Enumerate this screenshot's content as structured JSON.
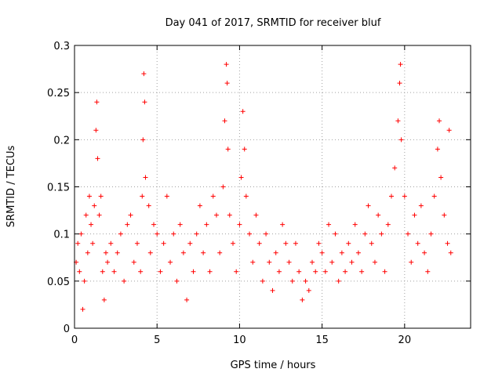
{
  "chart_data": {
    "type": "scatter",
    "title": "Day 041 of 2017, SRMTID for receiver bluf",
    "xlabel": "GPS time / hours",
    "ylabel": "SRMTID / TECUs",
    "xlim": [
      0,
      24
    ],
    "ylim": [
      0,
      0.3
    ],
    "xticks": [
      0,
      5,
      10,
      15,
      20
    ],
    "xtick_labels": [
      "0",
      "5",
      "10",
      "15",
      "20"
    ],
    "yticks": [
      0,
      0.05,
      0.1,
      0.15,
      0.2,
      0.25,
      0.3
    ],
    "ytick_labels": [
      "0",
      "0.05",
      "0.1",
      "0.15",
      "0.2",
      "0.25",
      "0.3"
    ],
    "grid": true,
    "marker": "+",
    "series_color": "#ff0000",
    "series": [
      {
        "name": "SRMTID",
        "points": [
          [
            0.1,
            0.07
          ],
          [
            0.2,
            0.09
          ],
          [
            0.3,
            0.06
          ],
          [
            0.4,
            0.1
          ],
          [
            0.5,
            0.02
          ],
          [
            0.6,
            0.05
          ],
          [
            0.7,
            0.12
          ],
          [
            0.8,
            0.08
          ],
          [
            0.9,
            0.14
          ],
          [
            1.0,
            0.11
          ],
          [
            1.1,
            0.09
          ],
          [
            1.2,
            0.13
          ],
          [
            1.3,
            0.21
          ],
          [
            1.35,
            0.24
          ],
          [
            1.4,
            0.18
          ],
          [
            1.5,
            0.12
          ],
          [
            1.6,
            0.14
          ],
          [
            1.7,
            0.06
          ],
          [
            1.8,
            0.03
          ],
          [
            1.9,
            0.08
          ],
          [
            2.0,
            0.07
          ],
          [
            2.2,
            0.09
          ],
          [
            2.4,
            0.06
          ],
          [
            2.6,
            0.08
          ],
          [
            2.8,
            0.1
          ],
          [
            3.0,
            0.05
          ],
          [
            3.2,
            0.11
          ],
          [
            3.4,
            0.12
          ],
          [
            3.6,
            0.07
          ],
          [
            3.8,
            0.09
          ],
          [
            4.0,
            0.06
          ],
          [
            4.1,
            0.14
          ],
          [
            4.15,
            0.2
          ],
          [
            4.2,
            0.27
          ],
          [
            4.25,
            0.24
          ],
          [
            4.3,
            0.16
          ],
          [
            4.5,
            0.13
          ],
          [
            4.6,
            0.08
          ],
          [
            4.8,
            0.11
          ],
          [
            5.0,
            0.1
          ],
          [
            5.2,
            0.06
          ],
          [
            5.4,
            0.09
          ],
          [
            5.6,
            0.14
          ],
          [
            5.8,
            0.07
          ],
          [
            6.0,
            0.1
          ],
          [
            6.2,
            0.05
          ],
          [
            6.4,
            0.11
          ],
          [
            6.6,
            0.08
          ],
          [
            6.8,
            0.03
          ],
          [
            7.0,
            0.09
          ],
          [
            7.2,
            0.06
          ],
          [
            7.4,
            0.1
          ],
          [
            7.6,
            0.13
          ],
          [
            7.8,
            0.08
          ],
          [
            8.0,
            0.11
          ],
          [
            8.2,
            0.06
          ],
          [
            8.4,
            0.14
          ],
          [
            8.6,
            0.12
          ],
          [
            8.8,
            0.08
          ],
          [
            9.0,
            0.15
          ],
          [
            9.1,
            0.22
          ],
          [
            9.2,
            0.28
          ],
          [
            9.25,
            0.26
          ],
          [
            9.3,
            0.19
          ],
          [
            9.4,
            0.12
          ],
          [
            9.6,
            0.09
          ],
          [
            9.8,
            0.06
          ],
          [
            10.0,
            0.11
          ],
          [
            10.1,
            0.16
          ],
          [
            10.2,
            0.23
          ],
          [
            10.3,
            0.19
          ],
          [
            10.4,
            0.14
          ],
          [
            10.6,
            0.1
          ],
          [
            10.8,
            0.07
          ],
          [
            11.0,
            0.12
          ],
          [
            11.2,
            0.09
          ],
          [
            11.4,
            0.05
          ],
          [
            11.6,
            0.1
          ],
          [
            11.8,
            0.07
          ],
          [
            12.0,
            0.04
          ],
          [
            12.2,
            0.08
          ],
          [
            12.4,
            0.06
          ],
          [
            12.6,
            0.11
          ],
          [
            12.8,
            0.09
          ],
          [
            13.0,
            0.07
          ],
          [
            13.2,
            0.05
          ],
          [
            13.4,
            0.09
          ],
          [
            13.6,
            0.06
          ],
          [
            13.8,
            0.03
          ],
          [
            14.0,
            0.05
          ],
          [
            14.2,
            0.04
          ],
          [
            14.4,
            0.07
          ],
          [
            14.6,
            0.06
          ],
          [
            14.8,
            0.09
          ],
          [
            15.0,
            0.08
          ],
          [
            15.2,
            0.06
          ],
          [
            15.4,
            0.11
          ],
          [
            15.6,
            0.07
          ],
          [
            15.8,
            0.1
          ],
          [
            16.0,
            0.05
          ],
          [
            16.2,
            0.08
          ],
          [
            16.4,
            0.06
          ],
          [
            16.6,
            0.09
          ],
          [
            16.8,
            0.07
          ],
          [
            17.0,
            0.11
          ],
          [
            17.2,
            0.08
          ],
          [
            17.4,
            0.06
          ],
          [
            17.6,
            0.1
          ],
          [
            17.8,
            0.13
          ],
          [
            18.0,
            0.09
          ],
          [
            18.2,
            0.07
          ],
          [
            18.4,
            0.12
          ],
          [
            18.6,
            0.1
          ],
          [
            18.8,
            0.06
          ],
          [
            19.0,
            0.11
          ],
          [
            19.2,
            0.14
          ],
          [
            19.4,
            0.17
          ],
          [
            19.6,
            0.22
          ],
          [
            19.7,
            0.26
          ],
          [
            19.75,
            0.28
          ],
          [
            19.8,
            0.2
          ],
          [
            20.0,
            0.14
          ],
          [
            20.2,
            0.1
          ],
          [
            20.4,
            0.07
          ],
          [
            20.6,
            0.12
          ],
          [
            20.8,
            0.09
          ],
          [
            21.0,
            0.13
          ],
          [
            21.2,
            0.08
          ],
          [
            21.4,
            0.06
          ],
          [
            21.6,
            0.1
          ],
          [
            21.8,
            0.14
          ],
          [
            22.0,
            0.19
          ],
          [
            22.1,
            0.22
          ],
          [
            22.2,
            0.16
          ],
          [
            22.4,
            0.12
          ],
          [
            22.6,
            0.09
          ],
          [
            22.7,
            0.21
          ],
          [
            22.8,
            0.08
          ]
        ]
      }
    ]
  }
}
